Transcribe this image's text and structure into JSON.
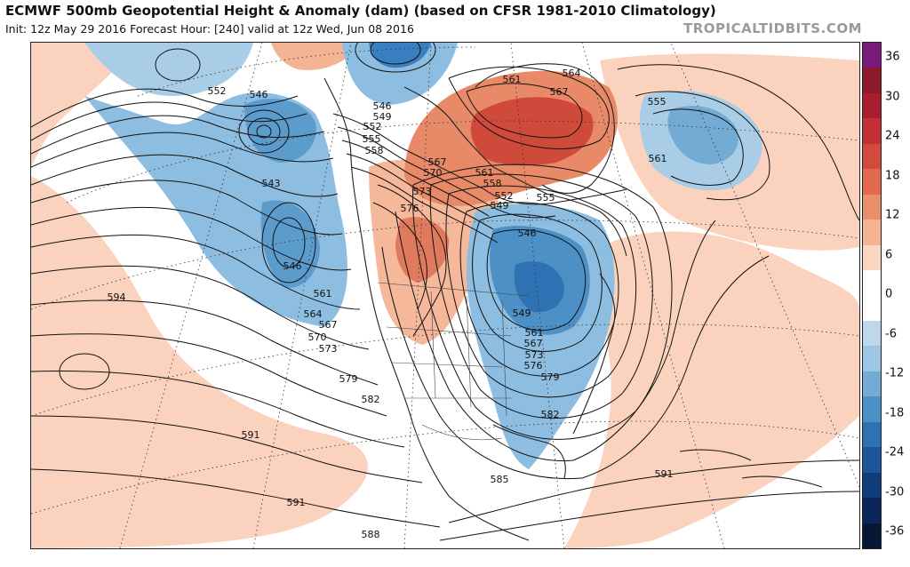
{
  "header": {
    "title": "ECMWF 500mb Geopotential Height & Anomaly (dam) (based on CFSR 1981-2010 Climatology)",
    "subtitle": "Init: 12z May 29 2016   Forecast Hour: [240]   valid at 12z Wed, Jun 08 2016",
    "watermark": "TROPICALTIDBITS.COM"
  },
  "colorbar": {
    "labels": [
      "36",
      "30",
      "24",
      "18",
      "12",
      "6",
      "0",
      "-6",
      "-12",
      "-18",
      "-24",
      "-30",
      "-36"
    ],
    "colors": [
      "#7a1a7a",
      "#8c1a2a",
      "#a81e2e",
      "#c42e35",
      "#d24a3e",
      "#e0694f",
      "#ea8f6c",
      "#f4b494",
      "#fbd7c2",
      "#ffffff",
      "#ffffff",
      "#bcd8ea",
      "#9cc6e2",
      "#73abd5",
      "#4d90c6",
      "#2f72b3",
      "#1c559a",
      "#113c7a",
      "#0a2558",
      "#061635"
    ]
  },
  "contour_labels": [
    {
      "text": "552"
    },
    {
      "text": "546"
    },
    {
      "text": "543"
    },
    {
      "text": "546"
    },
    {
      "text": "594"
    },
    {
      "text": "561"
    },
    {
      "text": "564"
    },
    {
      "text": "567"
    },
    {
      "text": "570"
    },
    {
      "text": "573"
    },
    {
      "text": "579"
    },
    {
      "text": "582"
    },
    {
      "text": "591"
    },
    {
      "text": "591"
    },
    {
      "text": "588"
    },
    {
      "text": "546"
    },
    {
      "text": "549"
    },
    {
      "text": "552"
    },
    {
      "text": "555"
    },
    {
      "text": "558"
    },
    {
      "text": "561"
    },
    {
      "text": "567"
    },
    {
      "text": "564"
    },
    {
      "text": "567"
    },
    {
      "text": "570"
    },
    {
      "text": "573"
    },
    {
      "text": "576"
    },
    {
      "text": "561"
    },
    {
      "text": "558"
    },
    {
      "text": "552"
    },
    {
      "text": "549"
    },
    {
      "text": "555"
    },
    {
      "text": "546"
    },
    {
      "text": "549"
    },
    {
      "text": "561"
    },
    {
      "text": "567"
    },
    {
      "text": "573"
    },
    {
      "text": "576"
    },
    {
      "text": "579"
    },
    {
      "text": "582"
    },
    {
      "text": "585"
    },
    {
      "text": "555"
    },
    {
      "text": "561"
    },
    {
      "text": "591"
    }
  ]
}
